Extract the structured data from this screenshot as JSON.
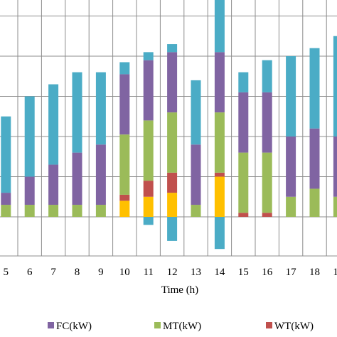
{
  "chart_data": {
    "type": "bar",
    "stacked": true,
    "xlabel": "Time (h)",
    "ylabel": "",
    "categories": [
      "5",
      "6",
      "7",
      "8",
      "9",
      "10",
      "11",
      "12",
      "13",
      "14",
      "15",
      "16",
      "17",
      "18",
      "19"
    ],
    "ylim": [
      -0.2,
      1.0
    ],
    "grid": true,
    "legend_position": "bottom",
    "series": [
      {
        "name": "",
        "color": "#FFC000",
        "values": [
          0,
          0,
          0,
          0,
          0,
          0.04,
          0.05,
          0.06,
          0,
          0.1,
          0,
          0,
          0,
          0,
          0
        ]
      },
      {
        "name": "WT(kW)",
        "color": "#C0504D",
        "values": [
          0,
          0,
          0,
          0,
          0,
          0.015,
          0.04,
          0.05,
          0,
          0.01,
          0.01,
          0.01,
          0,
          0,
          0
        ]
      },
      {
        "name": "MT(kW)",
        "color": "#9BBB59",
        "values": [
          0.03,
          0.03,
          0.03,
          0.03,
          0.03,
          0.15,
          0.15,
          0.15,
          0.03,
          0.15,
          0.15,
          0.15,
          0.05,
          0.07,
          0.05
        ]
      },
      {
        "name": "FC(kW)",
        "color": "#8064A2",
        "values": [
          0.03,
          0.07,
          0.1,
          0.13,
          0.15,
          0.15,
          0.15,
          0.15,
          0.15,
          0.15,
          0.15,
          0.15,
          0.15,
          0.15,
          0.15
        ]
      },
      {
        "name": "",
        "color": "#4BACC6",
        "values": [
          0.19,
          0.2,
          0.2,
          0.2,
          0.18,
          0.03,
          0.02,
          0.02,
          0.16,
          0.15,
          0.05,
          0.08,
          0.2,
          0.2,
          0.25
        ]
      },
      {
        "name": "",
        "color": "#4BACC6",
        "negative": true,
        "values": [
          0,
          0,
          0,
          0,
          0,
          0,
          -0.02,
          -0.06,
          0,
          -0.08,
          0,
          0,
          0,
          0,
          0
        ]
      }
    ]
  }
}
